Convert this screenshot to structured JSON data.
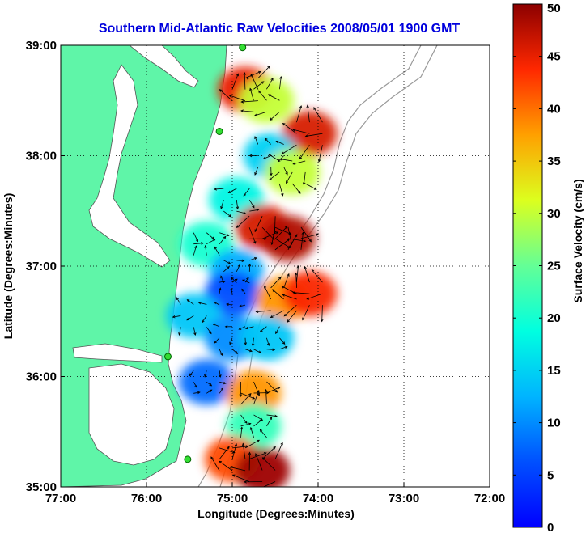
{
  "map": {
    "title": "Southern Mid-Atlantic Raw Velocities 2008/05/01 1900 GMT",
    "xlabel": "Longitude (Degrees:Minutes)",
    "ylabel": "Latitude (Degrees:Minutes)",
    "x_ticks": [
      {
        "value": -77,
        "label": "77:00"
      },
      {
        "value": -76,
        "label": "76:00"
      },
      {
        "value": -75,
        "label": "75:00"
      },
      {
        "value": -74,
        "label": "74:00"
      },
      {
        "value": -73,
        "label": "73:00"
      },
      {
        "value": -72,
        "label": "72:00"
      }
    ],
    "y_ticks": [
      {
        "value": 39,
        "label": "39:00"
      },
      {
        "value": 38,
        "label": "38:00"
      },
      {
        "value": 37,
        "label": "37:00"
      },
      {
        "value": 36,
        "label": "36:00"
      },
      {
        "value": 35,
        "label": "35:00"
      }
    ],
    "xlim": [
      -77,
      -72
    ],
    "ylim": [
      35,
      39
    ],
    "grid": true,
    "land_color": "#5ff5a8",
    "ocean_color": "#ffffff"
  },
  "colorbar": {
    "label": "Surface Velocity (cm/s)",
    "ticks": [
      "0",
      "5",
      "10",
      "15",
      "20",
      "25",
      "30",
      "35",
      "40",
      "45",
      "50"
    ],
    "range": [
      0,
      50
    ],
    "colormap": "jet"
  },
  "chart_data": {
    "type": "heatmap",
    "title": "Southern Mid-Atlantic Raw Velocities 2008/05/01 1900 GMT",
    "xlabel": "Longitude (Degrees:Minutes)",
    "ylabel": "Latitude (Degrees:Minutes)",
    "xlim": [
      -77,
      -72
    ],
    "ylim": [
      35,
      39
    ],
    "color_range": [
      0,
      50
    ],
    "stations": [
      {
        "lon": -74.88,
        "lat": 38.98
      },
      {
        "lon": -75.15,
        "lat": 38.22
      },
      {
        "lon": -75.75,
        "lat": 36.18
      },
      {
        "lon": -75.52,
        "lat": 35.25
      }
    ],
    "velocity_patches": [
      {
        "lon": -74.85,
        "lat": 38.6,
        "speed": 45
      },
      {
        "lon": -74.6,
        "lat": 38.5,
        "speed": 30
      },
      {
        "lon": -74.1,
        "lat": 38.2,
        "speed": 46
      },
      {
        "lon": -74.55,
        "lat": 38.0,
        "speed": 15
      },
      {
        "lon": -74.3,
        "lat": 37.85,
        "speed": 30
      },
      {
        "lon": -74.95,
        "lat": 37.6,
        "speed": 18
      },
      {
        "lon": -74.65,
        "lat": 37.35,
        "speed": 46
      },
      {
        "lon": -74.35,
        "lat": 37.25,
        "speed": 48
      },
      {
        "lon": -75.3,
        "lat": 37.2,
        "speed": 20
      },
      {
        "lon": -74.95,
        "lat": 36.95,
        "speed": 12
      },
      {
        "lon": -75.0,
        "lat": 36.75,
        "speed": 6
      },
      {
        "lon": -74.4,
        "lat": 36.7,
        "speed": 38
      },
      {
        "lon": -74.1,
        "lat": 36.75,
        "speed": 44
      },
      {
        "lon": -75.45,
        "lat": 36.55,
        "speed": 14
      },
      {
        "lon": -75.0,
        "lat": 36.35,
        "speed": 10
      },
      {
        "lon": -74.6,
        "lat": 36.35,
        "speed": 14
      },
      {
        "lon": -75.3,
        "lat": 35.95,
        "speed": 8
      },
      {
        "lon": -74.75,
        "lat": 35.85,
        "speed": 38
      },
      {
        "lon": -74.75,
        "lat": 35.55,
        "speed": 22
      },
      {
        "lon": -75.0,
        "lat": 35.25,
        "speed": 42
      },
      {
        "lon": -74.65,
        "lat": 35.15,
        "speed": 49
      }
    ]
  }
}
